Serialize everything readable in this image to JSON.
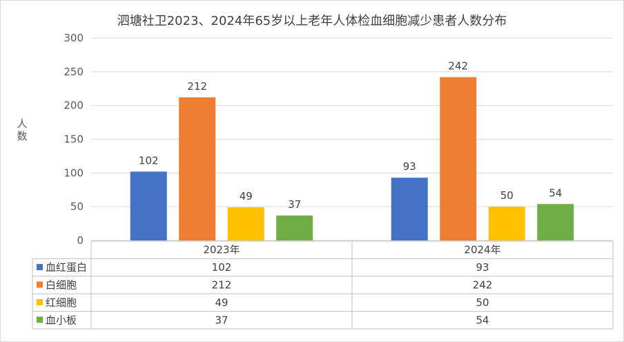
{
  "chart_data": {
    "type": "bar",
    "title": "泗塘社卫2023、2024年65岁以上老年人体检血细胞减少患者人数分布",
    "ylabel": "人数",
    "ylim": [
      0,
      300
    ],
    "yticks": [
      0,
      50,
      100,
      150,
      200,
      250,
      300
    ],
    "categories": [
      "2023年",
      "2024年"
    ],
    "series": [
      {
        "name": "血红蛋白",
        "color": "#4472C4",
        "values": [
          102,
          93
        ]
      },
      {
        "name": "白细胞",
        "color": "#ED7D31",
        "values": [
          212,
          242
        ]
      },
      {
        "name": "红细胞",
        "color": "#FFC000",
        "values": [
          49,
          50
        ]
      },
      {
        "name": "血小板",
        "color": "#70AD47",
        "values": [
          37,
          54
        ]
      }
    ],
    "grid": true,
    "legend": "data-table"
  }
}
